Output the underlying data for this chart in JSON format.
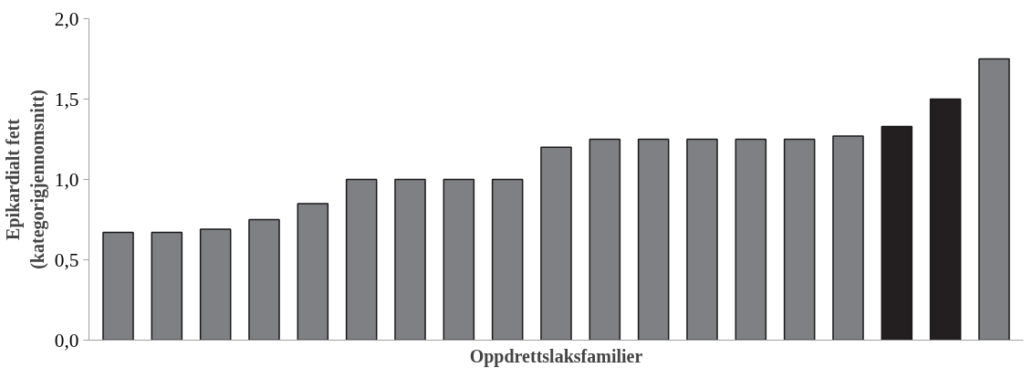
{
  "chart_data": {
    "type": "bar",
    "xlabel": "Oppdrettslaksfamilier",
    "ylabel": "Epikardialt fett\n(kategorigjennomsnitt)",
    "categories": [
      null,
      null,
      null,
      null,
      null,
      null,
      null,
      null,
      null,
      null,
      null,
      null,
      null,
      null,
      null,
      null,
      null,
      null,
      null
    ],
    "values": [
      0.67,
      0.67,
      0.69,
      0.75,
      0.85,
      1.0,
      1.0,
      1.0,
      1.0,
      1.2,
      1.25,
      1.25,
      1.25,
      1.25,
      1.25,
      1.27,
      1.33,
      1.5,
      1.75
    ],
    "colors": [
      "#7f8084",
      "#7f8084",
      "#7f8084",
      "#7f8084",
      "#7f8084",
      "#7f8084",
      "#7f8084",
      "#7f8084",
      "#7f8084",
      "#7f8084",
      "#7f8084",
      "#7f8084",
      "#7f8084",
      "#7f8084",
      "#7f8084",
      "#7f8084",
      "#231f20",
      "#231f20",
      "#7f8084"
    ],
    "ylim": [
      0,
      2
    ],
    "yticks": [
      {
        "value": 0,
        "label": "0,0"
      },
      {
        "value": 0.5,
        "label": "0,5"
      },
      {
        "value": 1,
        "label": "1,0"
      },
      {
        "value": 1.5,
        "label": "1,5"
      },
      {
        "value": 2,
        "label": "2,0"
      }
    ],
    "grid": false
  }
}
